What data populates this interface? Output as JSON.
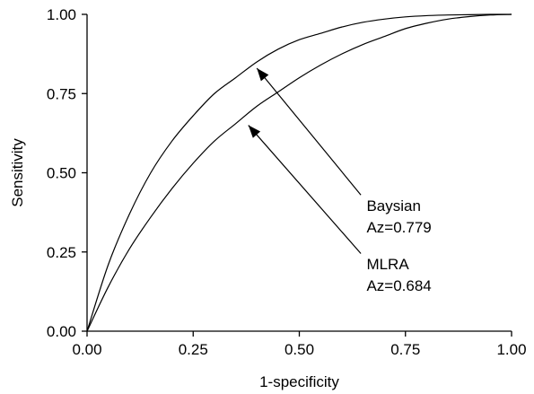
{
  "chart_data": {
    "type": "line",
    "title": "",
    "xlabel": "1-specificity",
    "ylabel": "Sensitivity",
    "xlim": [
      0,
      1
    ],
    "ylim": [
      0,
      1
    ],
    "xticks": [
      "0.00",
      "0.25",
      "0.50",
      "0.75",
      "1.00"
    ],
    "yticks": [
      "0.00",
      "0.25",
      "0.50",
      "0.75",
      "1.00"
    ],
    "grid": false,
    "legend": "none",
    "series": [
      {
        "name": "Baysian",
        "x": [
          0,
          0.05,
          0.1,
          0.15,
          0.2,
          0.25,
          0.3,
          0.35,
          0.4,
          0.45,
          0.5,
          0.55,
          0.6,
          0.65,
          0.7,
          0.75,
          0.8,
          0.85,
          0.9,
          0.95,
          1.0
        ],
        "y": [
          0,
          0.21,
          0.37,
          0.5,
          0.6,
          0.68,
          0.75,
          0.8,
          0.85,
          0.89,
          0.92,
          0.94,
          0.96,
          0.975,
          0.985,
          0.992,
          0.996,
          0.998,
          0.999,
          1.0,
          1.0
        ]
      },
      {
        "name": "MLRA",
        "x": [
          0,
          0.05,
          0.1,
          0.15,
          0.2,
          0.25,
          0.3,
          0.35,
          0.4,
          0.45,
          0.5,
          0.55,
          0.6,
          0.65,
          0.7,
          0.75,
          0.8,
          0.85,
          0.9,
          0.95,
          1.0
        ],
        "y": [
          0,
          0.14,
          0.26,
          0.36,
          0.45,
          0.53,
          0.6,
          0.655,
          0.71,
          0.755,
          0.8,
          0.84,
          0.875,
          0.905,
          0.93,
          0.955,
          0.972,
          0.985,
          0.993,
          0.998,
          1.0
        ]
      }
    ],
    "annotations": [
      {
        "lines": [
          "Baysian",
          "Az=0.779"
        ],
        "text_at": [
          0.65,
          0.38
        ],
        "arrow_from": [
          0.645,
          0.43
        ],
        "arrow_to": [
          0.4,
          0.83
        ]
      },
      {
        "lines": [
          "MLRA",
          "Az=0.684"
        ],
        "text_at": [
          0.65,
          0.195
        ],
        "arrow_from": [
          0.645,
          0.245
        ],
        "arrow_to": [
          0.38,
          0.65
        ]
      }
    ]
  }
}
